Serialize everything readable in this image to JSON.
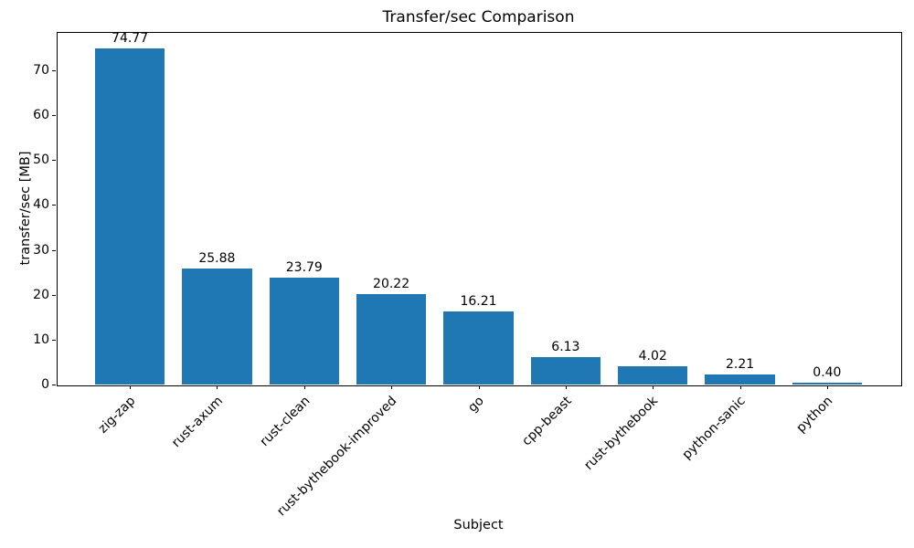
{
  "chart_data": {
    "type": "bar",
    "title": "Transfer/sec Comparison",
    "xlabel": "Subject",
    "ylabel": "transfer/sec [MB]",
    "categories": [
      "zig-zap",
      "rust-axum",
      "rust-clean",
      "rust-bythebook-improved",
      "go",
      "cpp-beast",
      "rust-bythebook",
      "python-sanic",
      "python"
    ],
    "values": [
      74.77,
      25.88,
      23.79,
      20.22,
      16.21,
      6.13,
      4.02,
      2.21,
      0.4
    ],
    "value_labels": [
      "74.77",
      "25.88",
      "23.79",
      "20.22",
      "16.21",
      "6.13",
      "4.02",
      "2.21",
      "0.40"
    ],
    "yticks": [
      0,
      10,
      20,
      30,
      40,
      50,
      60,
      70
    ],
    "ylim": [
      0,
      78.5
    ],
    "bar_color": "#1f77b4",
    "spine_color": "#000000",
    "xtick_rotation": 45,
    "legend": "none",
    "grid": false
  }
}
